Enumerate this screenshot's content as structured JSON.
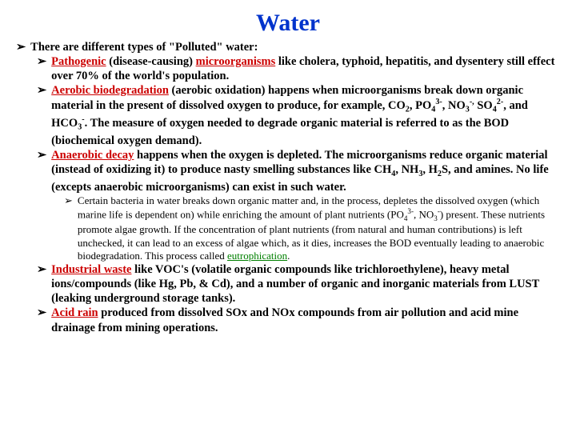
{
  "title": "Water",
  "lvl1_intro": "There are different types of \"Polluted\" water:",
  "pathogenic_term": "Pathogenic",
  "pathogenic_mid": " (disease-causing) ",
  "microorganisms_term": "microorganisms",
  "pathogenic_rest": " like cholera, typhoid, hepatitis, and dysentery still effect over 70% of the world's population.",
  "aerobic_term": "Aerobic biodegradation",
  "aerobic_rest_a": " (aerobic oxidation) happens when microorganisms break down organic material in the present of dissolved oxygen to produce, for example, CO",
  "aerobic_rest_b": ", PO",
  "aerobic_rest_c": ", NO",
  "aerobic_rest_d": " SO",
  "aerobic_rest_e": ", and HCO",
  "aerobic_rest_f": ".  The measure of oxygen needed to degrade organic material is referred to as the BOD (biochemical oxygen demand).",
  "anaerobic_term": "Anaerobic decay",
  "anaerobic_rest_a": " happens when the oxygen is depleted.  The microorganisms reduce organic material (instead of oxidizing it) to produce nasty smelling substances like CH",
  "anaerobic_rest_b": ", NH",
  "anaerobic_rest_c": ", H",
  "anaerobic_rest_d": "S, and amines.  No life (excepts anaerobic microorganisms) can exist in such water.",
  "lvl3_a": "Certain bacteria in water breaks down organic matter and, in the process, depletes the dissolved oxygen (which marine life is dependent on) while enriching the amount of plant nutrients (PO",
  "lvl3_b": ", NO",
  "lvl3_c": ") present.   These nutrients promote algae growth.  If the concentration of plant nutrients (from natural and human contributions) is left unchecked, it can lead to an excess of algae which, as it dies, increases the BOD eventually leading to anaerobic biodegradation.  This  process called ",
  "eutro_term": "eutrophication",
  "lvl3_d": ".",
  "industrial_term": "Industrial waste",
  "industrial_rest": " like VOC's (volatile organic compounds like trichloroethylene), heavy metal ions/compounds (like Hg, Pb, & Cd), and a number of organic and inorganic materials from LUST (leaking underground storage tanks).",
  "acid_term": "Acid rain",
  "acid_rest": " produced from dissolved SOx and NOx compounds from air pollution and acid mine drainage from mining operations.",
  "arrow": "➢"
}
